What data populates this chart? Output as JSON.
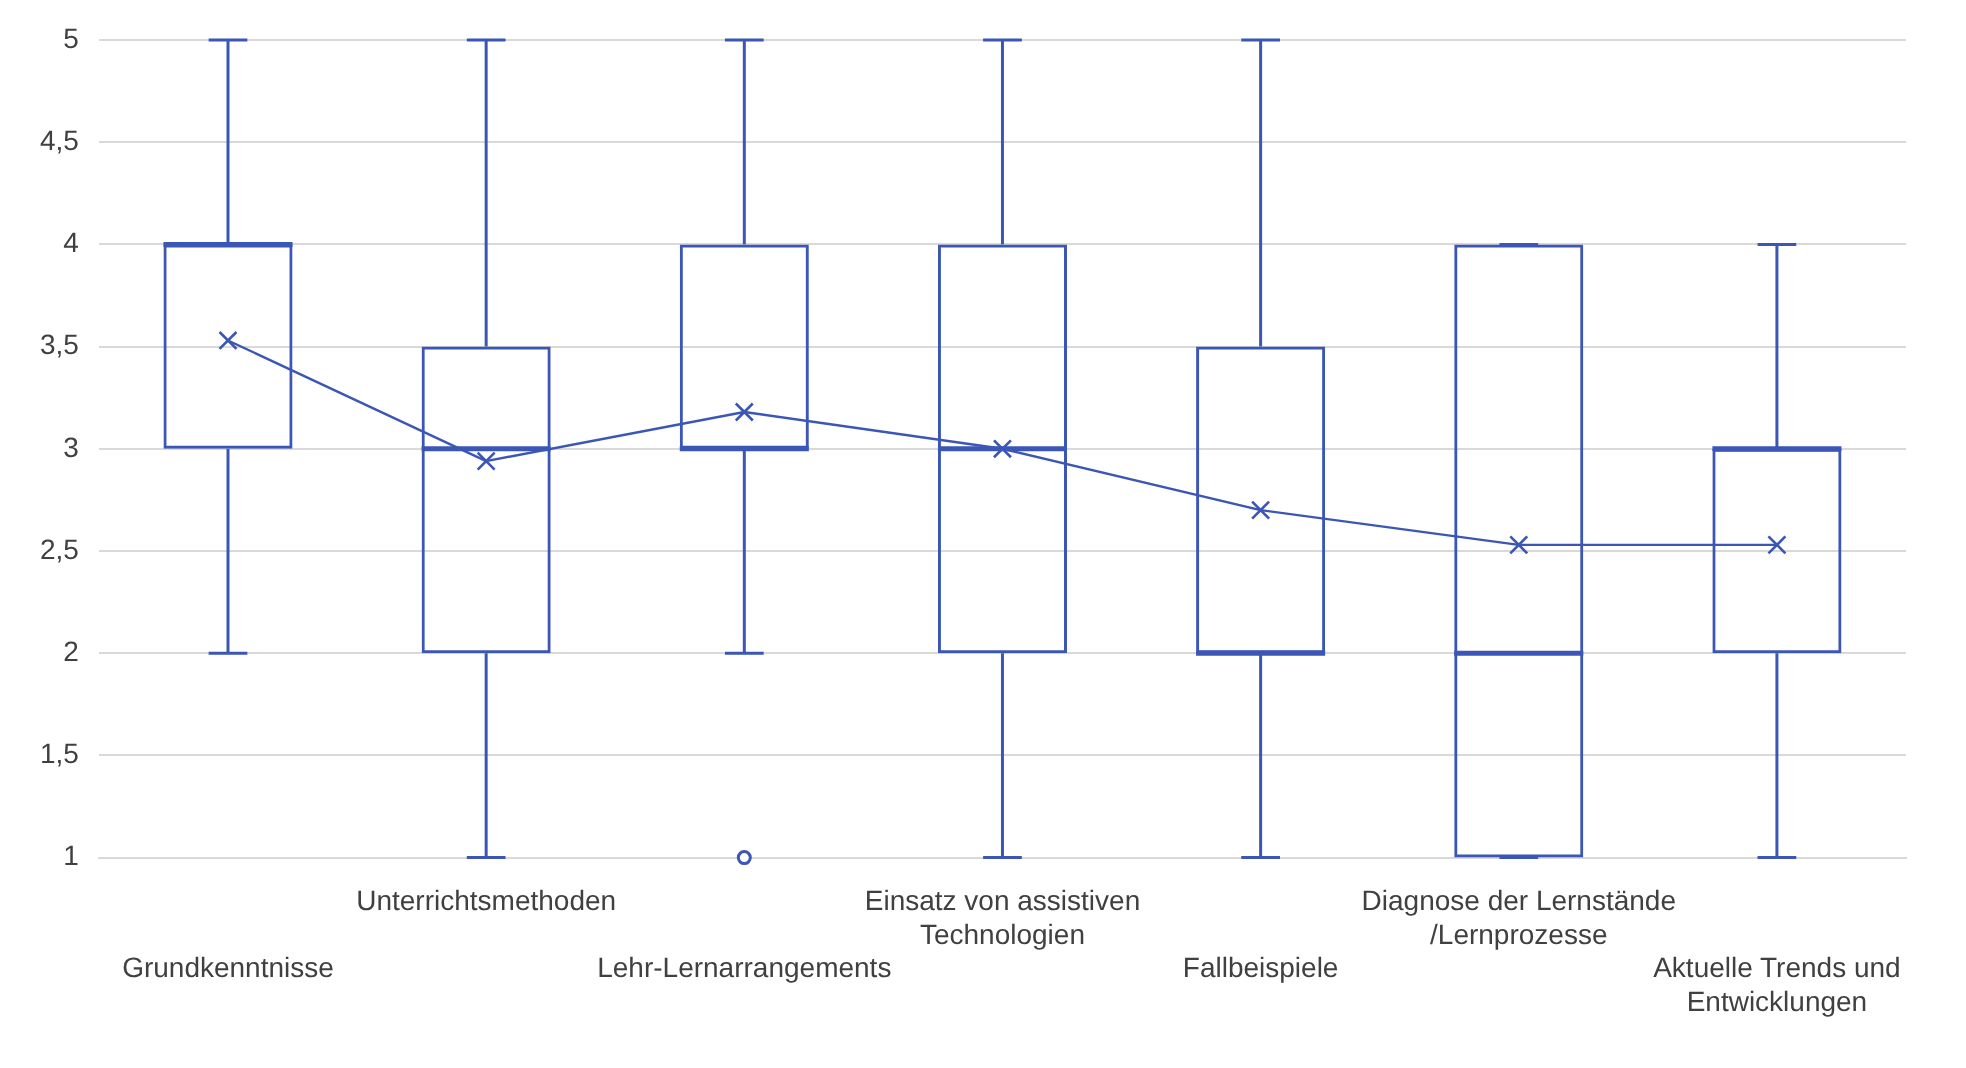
{
  "chart_data": {
    "type": "box",
    "categories": [
      "Grundkenntnisse",
      "Unterrichtsmethoden",
      "Lehr-Lernarrangements",
      "Einsatz von assistiven Technologien",
      "Fallbeispiele",
      "Diagnose der Lernstände /Lernprozesse",
      "Aktuelle Trends und Entwicklungen"
    ],
    "color": "#3b56b5",
    "boxes": [
      {
        "low": 2,
        "q1": 3,
        "median": 4,
        "q3": 4,
        "high": 5
      },
      {
        "low": 1,
        "q1": 2,
        "median": 3,
        "q3": 3.5,
        "high": 5
      },
      {
        "low": 2,
        "q1": 3,
        "median": 3,
        "q3": 4,
        "high": 5,
        "outliers": [
          1
        ]
      },
      {
        "low": 1,
        "q1": 2,
        "median": 3,
        "q3": 4,
        "high": 5
      },
      {
        "low": 1,
        "q1": 2,
        "median": 2,
        "q3": 3.5,
        "high": 5
      },
      {
        "low": 1,
        "q1": 1,
        "median": 2,
        "q3": 4,
        "high": 4
      },
      {
        "low": 1,
        "q1": 2,
        "median": 3,
        "q3": 3,
        "high": 4
      }
    ],
    "series": [
      {
        "type": "line",
        "color": "#3b56b5",
        "marker": "cross",
        "values": [
          3.53,
          2.94,
          3.18,
          3,
          2.7,
          2.53,
          2.53
        ]
      }
    ],
    "ylim": [
      1,
      5
    ],
    "yticks": [
      1,
      {
        "value": 1.5,
        "label": "1,5"
      },
      2,
      {
        "value": 2.5,
        "label": "2,5"
      },
      3,
      {
        "value": 3.5,
        "label": "3,5"
      },
      4,
      {
        "value": 4.5,
        "label": "4,5"
      },
      5
    ],
    "grid": "y",
    "legend": false
  }
}
